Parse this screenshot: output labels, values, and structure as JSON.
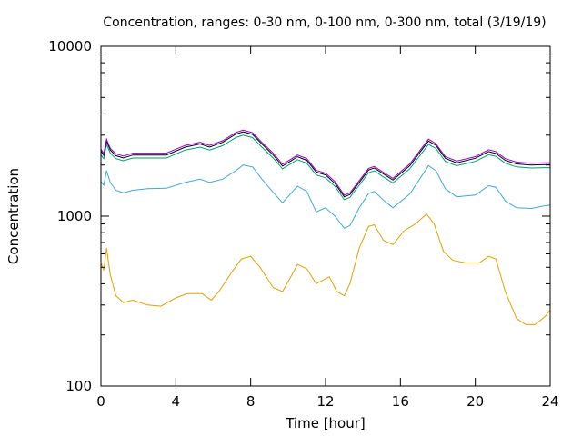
{
  "chart_data": {
    "type": "line",
    "title": "Concentration, ranges: 0-30 nm, 0-100 nm, 0-300 nm, total (3/19/19)",
    "xlabel": "Time [hour]",
    "ylabel": "Concentration",
    "xlim": [
      0,
      24
    ],
    "ylim": [
      100,
      10000
    ],
    "yscale": "log",
    "grid": false,
    "legend": "none",
    "x_ticks": [
      "0",
      "4",
      "8",
      "12",
      "16",
      "20",
      "24"
    ],
    "y_ticks": [
      "100",
      "1000",
      "10000"
    ],
    "series": [
      {
        "color": "#e0a000",
        "points": [
          [
            0,
            530
          ],
          [
            0.15,
            480
          ],
          [
            0.3,
            650
          ],
          [
            0.5,
            450
          ],
          [
            0.8,
            340
          ],
          [
            1.2,
            310
          ],
          [
            1.7,
            320
          ],
          [
            2.5,
            300
          ],
          [
            3.2,
            295
          ],
          [
            4,
            330
          ],
          [
            4.6,
            350
          ],
          [
            5.4,
            350
          ],
          [
            5.9,
            320
          ],
          [
            6.3,
            360
          ],
          [
            7,
            470
          ],
          [
            7.5,
            560
          ],
          [
            8,
            580
          ],
          [
            8.5,
            500
          ],
          [
            9.2,
            380
          ],
          [
            9.7,
            360
          ],
          [
            10.2,
            450
          ],
          [
            10.5,
            520
          ],
          [
            11,
            490
          ],
          [
            11.5,
            400
          ],
          [
            12.2,
            440
          ],
          [
            12.6,
            360
          ],
          [
            13,
            340
          ],
          [
            13.3,
            400
          ],
          [
            13.8,
            650
          ],
          [
            14.3,
            870
          ],
          [
            14.6,
            890
          ],
          [
            15.1,
            720
          ],
          [
            15.6,
            680
          ],
          [
            16.2,
            820
          ],
          [
            16.8,
            900
          ],
          [
            17.4,
            1030
          ],
          [
            17.8,
            900
          ],
          [
            18.3,
            620
          ],
          [
            18.8,
            550
          ],
          [
            19.5,
            530
          ],
          [
            20.2,
            530
          ],
          [
            20.7,
            580
          ],
          [
            21.1,
            560
          ],
          [
            21.6,
            360
          ],
          [
            22.2,
            250
          ],
          [
            22.7,
            230
          ],
          [
            23.2,
            230
          ],
          [
            23.7,
            255
          ],
          [
            24,
            280
          ]
        ]
      },
      {
        "color": "#40a8d8",
        "points": [
          [
            0,
            1600
          ],
          [
            0.15,
            1520
          ],
          [
            0.3,
            1850
          ],
          [
            0.5,
            1580
          ],
          [
            0.8,
            1420
          ],
          [
            1.2,
            1370
          ],
          [
            1.7,
            1420
          ],
          [
            2.5,
            1450
          ],
          [
            3.5,
            1460
          ],
          [
            4.5,
            1580
          ],
          [
            5.3,
            1650
          ],
          [
            5.8,
            1580
          ],
          [
            6.5,
            1650
          ],
          [
            7.2,
            1850
          ],
          [
            7.6,
            2000
          ],
          [
            8.1,
            1950
          ],
          [
            8.6,
            1650
          ],
          [
            9.2,
            1380
          ],
          [
            9.7,
            1200
          ],
          [
            10.2,
            1380
          ],
          [
            10.5,
            1500
          ],
          [
            11,
            1400
          ],
          [
            11.5,
            1060
          ],
          [
            12,
            1120
          ],
          [
            12.5,
            1000
          ],
          [
            13,
            850
          ],
          [
            13.3,
            880
          ],
          [
            13.8,
            1120
          ],
          [
            14.3,
            1360
          ],
          [
            14.6,
            1400
          ],
          [
            15.1,
            1240
          ],
          [
            15.6,
            1120
          ],
          [
            16.5,
            1350
          ],
          [
            17.5,
            1980
          ],
          [
            17.9,
            1850
          ],
          [
            18.4,
            1450
          ],
          [
            19,
            1300
          ],
          [
            20,
            1330
          ],
          [
            20.7,
            1510
          ],
          [
            21.1,
            1480
          ],
          [
            21.6,
            1230
          ],
          [
            22.2,
            1120
          ],
          [
            23,
            1110
          ],
          [
            23.7,
            1150
          ],
          [
            24,
            1160
          ]
        ]
      },
      {
        "color": "#009e73",
        "points": [
          [
            0,
            2300
          ],
          [
            0.15,
            2180
          ],
          [
            0.3,
            2650
          ],
          [
            0.5,
            2350
          ],
          [
            0.8,
            2180
          ],
          [
            1.2,
            2120
          ],
          [
            1.7,
            2200
          ],
          [
            3,
            2200
          ],
          [
            3.5,
            2200
          ],
          [
            4.5,
            2450
          ],
          [
            5.3,
            2550
          ],
          [
            5.8,
            2450
          ],
          [
            6.5,
            2600
          ],
          [
            7.2,
            2900
          ],
          [
            7.6,
            3000
          ],
          [
            8.1,
            2900
          ],
          [
            8.6,
            2550
          ],
          [
            9.2,
            2200
          ],
          [
            9.7,
            1900
          ],
          [
            10.2,
            2050
          ],
          [
            10.5,
            2150
          ],
          [
            11,
            2050
          ],
          [
            11.5,
            1750
          ],
          [
            12,
            1680
          ],
          [
            12.5,
            1500
          ],
          [
            13,
            1250
          ],
          [
            13.3,
            1290
          ],
          [
            13.8,
            1520
          ],
          [
            14.3,
            1800
          ],
          [
            14.6,
            1850
          ],
          [
            15.1,
            1700
          ],
          [
            15.6,
            1570
          ],
          [
            16.5,
            1900
          ],
          [
            17.5,
            2650
          ],
          [
            17.9,
            2500
          ],
          [
            18.4,
            2100
          ],
          [
            19,
            1980
          ],
          [
            20,
            2100
          ],
          [
            20.7,
            2300
          ],
          [
            21.1,
            2250
          ],
          [
            21.6,
            2050
          ],
          [
            22.2,
            1950
          ],
          [
            23,
            1920
          ],
          [
            23.7,
            1930
          ],
          [
            24,
            1930
          ]
        ]
      },
      {
        "color": "#000000",
        "points": [
          [
            0,
            2420
          ],
          [
            0.15,
            2280
          ],
          [
            0.3,
            2770
          ],
          [
            0.5,
            2450
          ],
          [
            0.8,
            2270
          ],
          [
            1.2,
            2200
          ],
          [
            1.7,
            2290
          ],
          [
            3,
            2290
          ],
          [
            3.5,
            2290
          ],
          [
            4.5,
            2550
          ],
          [
            5.3,
            2660
          ],
          [
            5.8,
            2550
          ],
          [
            6.5,
            2720
          ],
          [
            7.2,
            3040
          ],
          [
            7.6,
            3140
          ],
          [
            8.1,
            3030
          ],
          [
            8.6,
            2660
          ],
          [
            9.2,
            2290
          ],
          [
            9.7,
            1970
          ],
          [
            10.2,
            2130
          ],
          [
            10.5,
            2240
          ],
          [
            11,
            2130
          ],
          [
            11.5,
            1820
          ],
          [
            12,
            1750
          ],
          [
            12.5,
            1560
          ],
          [
            13,
            1300
          ],
          [
            13.3,
            1340
          ],
          [
            13.8,
            1580
          ],
          [
            14.3,
            1870
          ],
          [
            14.6,
            1920
          ],
          [
            15.1,
            1770
          ],
          [
            15.6,
            1630
          ],
          [
            16.5,
            1980
          ],
          [
            17.5,
            2770
          ],
          [
            17.9,
            2610
          ],
          [
            18.4,
            2190
          ],
          [
            19,
            2060
          ],
          [
            20,
            2190
          ],
          [
            20.7,
            2400
          ],
          [
            21.1,
            2340
          ],
          [
            21.6,
            2130
          ],
          [
            22.2,
            2030
          ],
          [
            23,
            2000
          ],
          [
            23.7,
            2010
          ],
          [
            24,
            2010
          ]
        ]
      },
      {
        "color": "#9400d3",
        "points": [
          [
            0,
            2480
          ],
          [
            0.15,
            2340
          ],
          [
            0.3,
            2840
          ],
          [
            0.5,
            2510
          ],
          [
            0.8,
            2330
          ],
          [
            1.2,
            2260
          ],
          [
            1.7,
            2350
          ],
          [
            3,
            2350
          ],
          [
            3.5,
            2350
          ],
          [
            4.5,
            2610
          ],
          [
            5.3,
            2720
          ],
          [
            5.8,
            2610
          ],
          [
            6.5,
            2780
          ],
          [
            7.2,
            3110
          ],
          [
            7.6,
            3210
          ],
          [
            8.1,
            3100
          ],
          [
            8.6,
            2720
          ],
          [
            9.2,
            2350
          ],
          [
            9.7,
            2020
          ],
          [
            10.2,
            2180
          ],
          [
            10.5,
            2290
          ],
          [
            11,
            2180
          ],
          [
            11.5,
            1860
          ],
          [
            12,
            1790
          ],
          [
            12.5,
            1600
          ],
          [
            13,
            1330
          ],
          [
            13.3,
            1370
          ],
          [
            13.8,
            1620
          ],
          [
            14.3,
            1910
          ],
          [
            14.6,
            1960
          ],
          [
            15.1,
            1810
          ],
          [
            15.6,
            1670
          ],
          [
            16.5,
            2030
          ],
          [
            17.5,
            2840
          ],
          [
            17.9,
            2670
          ],
          [
            18.4,
            2240
          ],
          [
            19,
            2110
          ],
          [
            20,
            2240
          ],
          [
            20.7,
            2460
          ],
          [
            21.1,
            2400
          ],
          [
            21.6,
            2180
          ],
          [
            22.2,
            2080
          ],
          [
            23,
            2050
          ],
          [
            23.7,
            2060
          ],
          [
            24,
            2060
          ]
        ]
      }
    ]
  }
}
